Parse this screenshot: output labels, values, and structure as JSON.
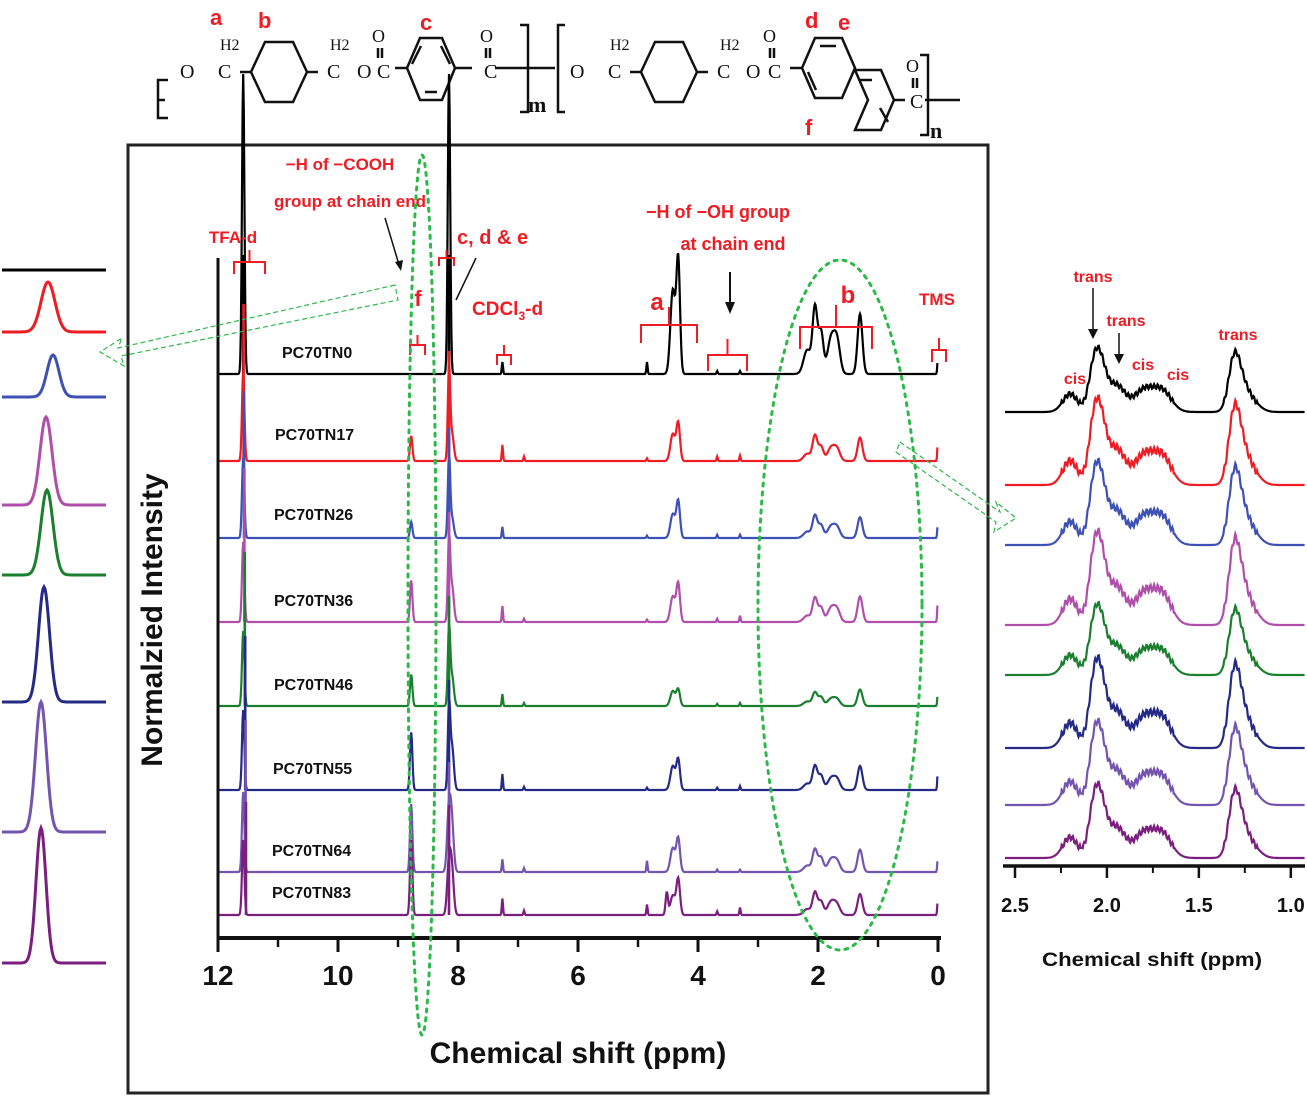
{
  "chart_data": [
    {
      "type": "line",
      "panel": "main",
      "title": "",
      "xlabel": "Chemical shift (ppm)",
      "ylabel": "Normalzied Intensity",
      "xlim": [
        12,
        0
      ],
      "xticks": [
        "12",
        "10",
        "8",
        "6",
        "4",
        "2",
        "0"
      ],
      "x_tick_values": [
        12,
        10,
        8,
        6,
        4,
        2,
        0
      ],
      "grid": false,
      "legend": "inline-labels",
      "series": [
        {
          "name": "PC70TN0",
          "color": "#000000",
          "peaks": [
            [
              11.58,
              1.0,
              0.02
            ],
            [
              8.78,
              0.0,
              0.02
            ],
            [
              8.15,
              1.0,
              0.02
            ],
            [
              7.26,
              0.04,
              0.01
            ],
            [
              4.85,
              0.04,
              0.01
            ],
            [
              4.42,
              0.28,
              0.04
            ],
            [
              4.33,
              0.38,
              0.03
            ],
            [
              3.68,
              0.01,
              0.01
            ],
            [
              3.3,
              0.01,
              0.01
            ],
            [
              2.18,
              0.08,
              0.06
            ],
            [
              2.05,
              0.22,
              0.04
            ],
            [
              1.95,
              0.14,
              0.04
            ],
            [
              1.78,
              0.12,
              0.06
            ],
            [
              1.68,
              0.1,
              0.05
            ],
            [
              1.3,
              0.2,
              0.04
            ],
            [
              0.0,
              0.06,
              0.01
            ]
          ]
        },
        {
          "name": "PC70TN17",
          "color": "#ee1c24",
          "peaks": [
            [
              11.58,
              1.0,
              0.02
            ],
            [
              8.78,
              0.28,
              0.02
            ],
            [
              8.15,
              1.0,
              0.02
            ],
            [
              8.1,
              0.3,
              0.03
            ],
            [
              7.26,
              0.18,
              0.01
            ],
            [
              6.9,
              0.05,
              0.01
            ],
            [
              4.85,
              0.03,
              0.01
            ],
            [
              4.42,
              0.3,
              0.04
            ],
            [
              4.33,
              0.42,
              0.03
            ],
            [
              3.68,
              0.05,
              0.01
            ],
            [
              3.3,
              0.06,
              0.01
            ],
            [
              2.18,
              0.08,
              0.06
            ],
            [
              2.05,
              0.28,
              0.04
            ],
            [
              1.95,
              0.16,
              0.04
            ],
            [
              1.78,
              0.15,
              0.06
            ],
            [
              1.68,
              0.12,
              0.05
            ],
            [
              1.3,
              0.26,
              0.04
            ],
            [
              0.0,
              0.25,
              0.01
            ]
          ]
        },
        {
          "name": "PC70TN26",
          "color": "#3f51b5",
          "peaks": [
            [
              11.58,
              1.0,
              0.02
            ],
            [
              8.78,
              0.2,
              0.02
            ],
            [
              8.15,
              1.0,
              0.02
            ],
            [
              8.1,
              0.25,
              0.03
            ],
            [
              7.26,
              0.14,
              0.01
            ],
            [
              4.85,
              0.03,
              0.01
            ],
            [
              4.42,
              0.3,
              0.04
            ],
            [
              4.33,
              0.46,
              0.03
            ],
            [
              3.68,
              0.04,
              0.01
            ],
            [
              3.3,
              0.04,
              0.01
            ],
            [
              2.18,
              0.08,
              0.06
            ],
            [
              2.05,
              0.28,
              0.04
            ],
            [
              1.95,
              0.16,
              0.04
            ],
            [
              1.78,
              0.15,
              0.06
            ],
            [
              1.68,
              0.12,
              0.05
            ],
            [
              1.3,
              0.26,
              0.04
            ],
            [
              0.0,
              0.22,
              0.01
            ]
          ]
        },
        {
          "name": "PC70TN36",
          "color": "#b04fab",
          "peaks": [
            [
              11.58,
              1.0,
              0.02
            ],
            [
              8.78,
              0.52,
              0.02
            ],
            [
              8.15,
              1.0,
              0.02
            ],
            [
              8.1,
              0.45,
              0.03
            ],
            [
              7.26,
              0.2,
              0.01
            ],
            [
              6.9,
              0.04,
              0.01
            ],
            [
              4.85,
              0.03,
              0.01
            ],
            [
              4.42,
              0.32,
              0.04
            ],
            [
              4.33,
              0.48,
              0.03
            ],
            [
              3.68,
              0.04,
              0.01
            ],
            [
              3.3,
              0.08,
              0.01
            ],
            [
              2.18,
              0.08,
              0.06
            ],
            [
              2.05,
              0.3,
              0.04
            ],
            [
              1.95,
              0.18,
              0.04
            ],
            [
              1.78,
              0.18,
              0.06
            ],
            [
              1.68,
              0.14,
              0.05
            ],
            [
              1.3,
              0.32,
              0.04
            ],
            [
              0.0,
              0.34,
              0.01
            ]
          ]
        },
        {
          "name": "PC70TN46",
          "color": "#1b7f2f",
          "peaks": [
            [
              11.58,
              1.0,
              0.02
            ],
            [
              8.78,
              0.42,
              0.02
            ],
            [
              8.15,
              1.0,
              0.02
            ],
            [
              8.1,
              0.4,
              0.03
            ],
            [
              7.26,
              0.16,
              0.01
            ],
            [
              6.9,
              0.04,
              0.01
            ],
            [
              4.42,
              0.2,
              0.04
            ],
            [
              4.33,
              0.22,
              0.03
            ],
            [
              3.68,
              0.03,
              0.01
            ],
            [
              3.3,
              0.04,
              0.01
            ],
            [
              2.18,
              0.06,
              0.06
            ],
            [
              2.05,
              0.18,
              0.04
            ],
            [
              1.95,
              0.12,
              0.04
            ],
            [
              1.78,
              0.1,
              0.06
            ],
            [
              1.68,
              0.08,
              0.05
            ],
            [
              1.3,
              0.22,
              0.04
            ],
            [
              0.0,
              0.2,
              0.01
            ]
          ]
        },
        {
          "name": "PC70TN55",
          "color": "#242a86",
          "peaks": [
            [
              11.58,
              1.0,
              0.02
            ],
            [
              8.78,
              0.72,
              0.02
            ],
            [
              8.15,
              1.0,
              0.02
            ],
            [
              8.1,
              0.55,
              0.03
            ],
            [
              7.26,
              0.2,
              0.01
            ],
            [
              6.9,
              0.04,
              0.01
            ],
            [
              4.85,
              0.03,
              0.01
            ],
            [
              4.42,
              0.3,
              0.04
            ],
            [
              4.33,
              0.38,
              0.03
            ],
            [
              3.68,
              0.03,
              0.01
            ],
            [
              3.3,
              0.05,
              0.01
            ],
            [
              2.18,
              0.08,
              0.06
            ],
            [
              2.05,
              0.3,
              0.04
            ],
            [
              1.95,
              0.18,
              0.04
            ],
            [
              1.78,
              0.15,
              0.06
            ],
            [
              1.68,
              0.12,
              0.05
            ],
            [
              1.3,
              0.3,
              0.04
            ],
            [
              0.0,
              0.28,
              0.01
            ]
          ]
        },
        {
          "name": "PC70TN64",
          "color": "#7355b0",
          "peaks": [
            [
              11.58,
              1.0,
              0.02
            ],
            [
              8.78,
              0.85,
              0.02
            ],
            [
              8.15,
              0.8,
              0.03
            ],
            [
              8.1,
              0.55,
              0.03
            ],
            [
              7.26,
              0.16,
              0.01
            ],
            [
              6.9,
              0.05,
              0.01
            ],
            [
              4.85,
              0.14,
              0.01
            ],
            [
              4.42,
              0.3,
              0.04
            ],
            [
              4.33,
              0.42,
              0.03
            ],
            [
              3.68,
              0.03,
              0.01
            ],
            [
              3.3,
              0.03,
              0.01
            ],
            [
              2.18,
              0.08,
              0.06
            ],
            [
              2.05,
              0.28,
              0.04
            ],
            [
              1.95,
              0.18,
              0.04
            ],
            [
              1.78,
              0.16,
              0.06
            ],
            [
              1.68,
              0.12,
              0.05
            ],
            [
              1.3,
              0.28,
              0.04
            ],
            [
              0.0,
              0.22,
              0.01
            ]
          ]
        },
        {
          "name": "PC70TN83",
          "color": "#7b1f7e",
          "peaks": [
            [
              11.58,
              1.0,
              0.02
            ],
            [
              8.78,
              1.0,
              0.02
            ],
            [
              8.15,
              0.7,
              0.03
            ],
            [
              8.1,
              0.55,
              0.03
            ],
            [
              7.26,
              0.22,
              0.01
            ],
            [
              6.9,
              0.06,
              0.01
            ],
            [
              4.85,
              0.14,
              0.01
            ],
            [
              4.52,
              0.3,
              0.02
            ],
            [
              4.42,
              0.26,
              0.04
            ],
            [
              4.33,
              0.48,
              0.03
            ],
            [
              3.68,
              0.05,
              0.01
            ],
            [
              3.3,
              0.1,
              0.01
            ],
            [
              2.18,
              0.08,
              0.06
            ],
            [
              2.05,
              0.3,
              0.04
            ],
            [
              1.95,
              0.18,
              0.04
            ],
            [
              1.78,
              0.18,
              0.06
            ],
            [
              1.68,
              0.12,
              0.05
            ],
            [
              1.3,
              0.28,
              0.04
            ],
            [
              0.0,
              0.25,
              0.01
            ]
          ]
        }
      ],
      "annotations": [
        {
          "text": "TFA-d",
          "ppm": 11.6,
          "color": "#ee1c24"
        },
        {
          "text": "−H of −COOH",
          "ppm": 9.5,
          "color": "#ee1c24"
        },
        {
          "text": "group at chain end",
          "ppm": 9.5,
          "color": "#ee1c24"
        },
        {
          "text": "f",
          "ppm": 8.78,
          "color": "#ee1c24"
        },
        {
          "text": "c, d & e",
          "ppm": 7.7,
          "color": "#ee1c24"
        },
        {
          "text": "CDCl",
          "sub": "3",
          "suffix": "-d",
          "ppm": 7.26,
          "color": "#ee1c24"
        },
        {
          "text": "a",
          "ppm": 4.4,
          "color": "#ee1c24"
        },
        {
          "text": "−H of −OH group",
          "ppm": 3.4,
          "color": "#ee1c24"
        },
        {
          "text": "at chain end",
          "ppm": 3.4,
          "color": "#ee1c24"
        },
        {
          "text": "b",
          "ppm": 1.7,
          "color": "#ee1c24"
        },
        {
          "text": "TMS",
          "ppm": 0.0,
          "color": "#ee1c24"
        }
      ]
    },
    {
      "type": "line",
      "panel": "right-inset",
      "xlabel": "Chemical shift (ppm)",
      "xlim": [
        2.5,
        1.0
      ],
      "xticks": [
        "2.5",
        "2.0",
        "1.5",
        "1.0"
      ],
      "x_tick_values": [
        2.5,
        2.0,
        1.5,
        1.0
      ],
      "annotations": [
        {
          "text": "cis",
          "ppm": 2.2
        },
        {
          "text": "trans",
          "ppm": 2.05
        },
        {
          "text": "trans",
          "ppm": 1.95
        },
        {
          "text": "cis",
          "ppm": 1.8
        },
        {
          "text": "cis",
          "ppm": 1.68
        },
        {
          "text": "trans",
          "ppm": 1.3
        }
      ],
      "series_names": [
        "PC70TN0",
        "PC70TN17",
        "PC70TN26",
        "PC70TN36",
        "PC70TN46",
        "PC70TN55",
        "PC70TN64",
        "PC70TN83"
      ]
    },
    {
      "type": "line",
      "panel": "left-inset",
      "description": "Zoom of f peak (~8.78 ppm) for each sample",
      "series_names": [
        "PC70TN0",
        "PC70TN17",
        "PC70TN26",
        "PC70TN36",
        "PC70TN46",
        "PC70TN55",
        "PC70TN64",
        "PC70TN83"
      ],
      "relative_heights": [
        0,
        0.45,
        0.35,
        0.8,
        0.75,
        0.95,
        0.95,
        1.0
      ]
    }
  ],
  "structure": {
    "labels": [
      "a",
      "b",
      "c",
      "d",
      "e",
      "f"
    ],
    "subscripts": [
      "m",
      "n"
    ],
    "groups": [
      "O",
      "C",
      "H2",
      "C",
      "O",
      "C",
      "O",
      "C",
      "O"
    ]
  },
  "legend_labels": [
    "PC70TN0",
    "PC70TN17",
    "PC70TN26",
    "PC70TN36",
    "PC70TN46",
    "PC70TN55",
    "PC70TN64",
    "PC70TN83"
  ]
}
